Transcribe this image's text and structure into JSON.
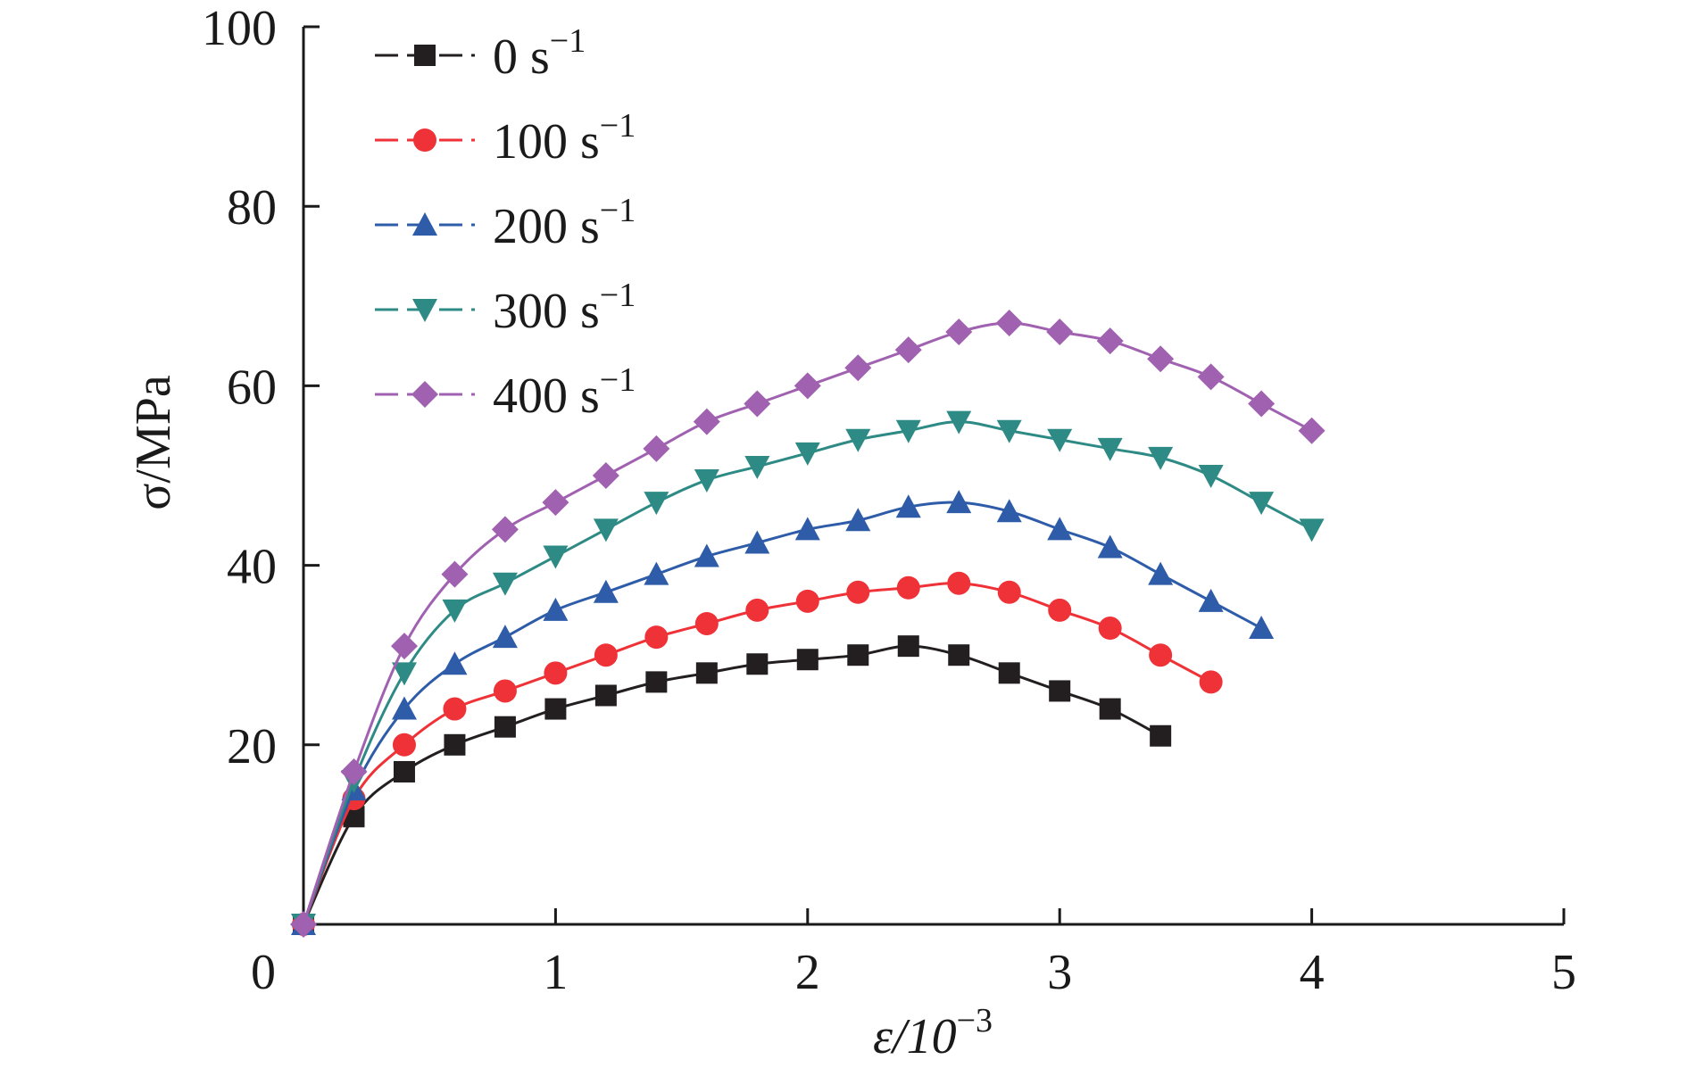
{
  "chart_data": {
    "type": "line",
    "xlabel": "ε/10",
    "xlabel_sup": "−3",
    "ylabel": "σ/MPa",
    "xlim": [
      0,
      5
    ],
    "ylim": [
      0,
      100
    ],
    "x_ticks": [
      0,
      1,
      2,
      3,
      4,
      5
    ],
    "y_ticks": [
      20,
      40,
      60,
      80,
      100
    ],
    "x_tick_labels": [
      "0",
      "1",
      "2",
      "3",
      "4",
      "5"
    ],
    "y_tick_labels": [
      "20",
      "40",
      "60",
      "80",
      "100"
    ],
    "grid": false,
    "legend_position": "top-left",
    "series": [
      {
        "name": "0 s",
        "name_sup": "−1",
        "color": "#231f20",
        "marker": "square",
        "x": [
          0,
          0.2,
          0.4,
          0.6,
          0.8,
          1.0,
          1.2,
          1.4,
          1.6,
          1.8,
          2.0,
          2.2,
          2.4,
          2.6,
          2.8,
          3.0,
          3.2,
          3.4
        ],
        "y": [
          0,
          12,
          17,
          20,
          22,
          24,
          25.5,
          27,
          28,
          29,
          29.5,
          30,
          31,
          30,
          28,
          26,
          24,
          21
        ]
      },
      {
        "name": "100 s",
        "name_sup": "−1",
        "color": "#ee3237",
        "marker": "circle",
        "x": [
          0,
          0.2,
          0.4,
          0.6,
          0.8,
          1.0,
          1.2,
          1.4,
          1.6,
          1.8,
          2.0,
          2.2,
          2.4,
          2.6,
          2.8,
          3.0,
          3.2,
          3.4,
          3.6
        ],
        "y": [
          0,
          14,
          20,
          24,
          26,
          28,
          30,
          32,
          33.5,
          35,
          36,
          37,
          37.5,
          38,
          37,
          35,
          33,
          30,
          27
        ]
      },
      {
        "name": "200 s",
        "name_sup": "−1",
        "color": "#2e5ca8",
        "marker": "triangle-up",
        "x": [
          0,
          0.2,
          0.4,
          0.6,
          0.8,
          1.0,
          1.2,
          1.4,
          1.6,
          1.8,
          2.0,
          2.2,
          2.4,
          2.6,
          2.8,
          3.0,
          3.2,
          3.4,
          3.6,
          3.8
        ],
        "y": [
          0,
          15,
          24,
          29,
          32,
          35,
          37,
          39,
          41,
          42.5,
          44,
          45,
          46.5,
          47,
          46,
          44,
          42,
          39,
          36,
          33
        ]
      },
      {
        "name": "300 s",
        "name_sup": "−1",
        "color": "#2e8a84",
        "marker": "triangle-down",
        "x": [
          0,
          0.2,
          0.4,
          0.6,
          0.8,
          1.0,
          1.2,
          1.4,
          1.6,
          1.8,
          2.0,
          2.2,
          2.4,
          2.6,
          2.8,
          3.0,
          3.2,
          3.4,
          3.6,
          3.8,
          4.0
        ],
        "y": [
          0,
          16,
          28,
          35,
          38,
          41,
          44,
          47,
          49.5,
          51,
          52.5,
          54,
          55,
          56,
          55,
          54,
          53,
          52,
          50,
          47,
          44
        ]
      },
      {
        "name": "400 s",
        "name_sup": "−1",
        "color": "#a061b0",
        "marker": "diamond",
        "x": [
          0,
          0.2,
          0.4,
          0.6,
          0.8,
          1.0,
          1.2,
          1.4,
          1.6,
          1.8,
          2.0,
          2.2,
          2.4,
          2.6,
          2.8,
          3.0,
          3.2,
          3.4,
          3.6,
          3.8,
          4.0
        ],
        "y": [
          0,
          17,
          31,
          39,
          44,
          47,
          50,
          53,
          56,
          58,
          60,
          62,
          64,
          66,
          67,
          66,
          65,
          63,
          61,
          58,
          55
        ]
      }
    ]
  }
}
